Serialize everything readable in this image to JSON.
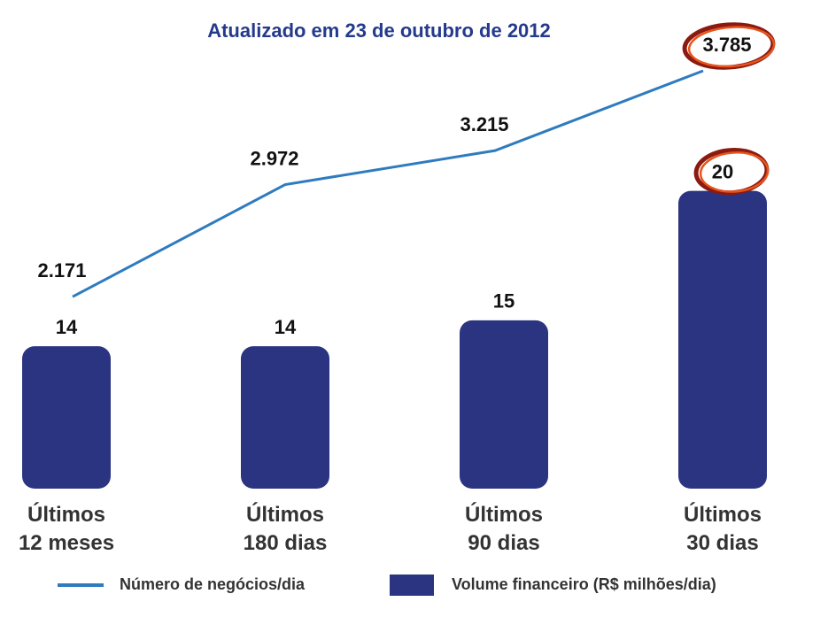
{
  "chart_data": {
    "type": "bar-line",
    "title": "Atualizado em 23 de outubro de 2012",
    "categories": [
      "Últimos\n12 meses",
      "Últimos\n180 dias",
      "Últimos\n90 dias",
      "Últimos\n30 dias"
    ],
    "series": [
      {
        "name": "Número de negócios/dia",
        "type": "line",
        "axis": "y2",
        "color": "#2e7bbf",
        "values": [
          2171,
          2972,
          3215,
          3785
        ],
        "value_labels": [
          "2.171",
          "2.972",
          "3.215",
          "3.785"
        ]
      },
      {
        "name": "Volume financeiro (R$ milhões/dia)",
        "type": "bar",
        "color": "#2b3480",
        "values": [
          14,
          14,
          15,
          20
        ]
      }
    ],
    "ylim": [
      8.5,
      25.8
    ],
    "y2lim": [
      800,
      4000
    ],
    "legend": "bottom"
  }
}
